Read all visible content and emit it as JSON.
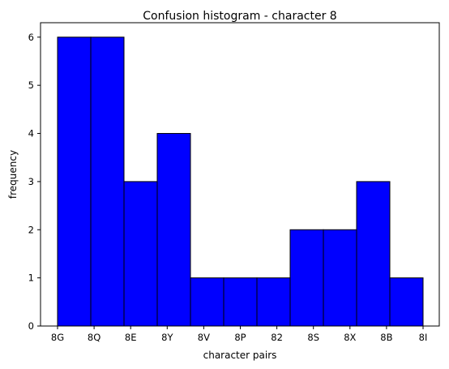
{
  "chart_data": {
    "type": "bar",
    "title": "Confusion histogram - character 8",
    "xlabel": "character pairs",
    "ylabel": "frequency",
    "x_tick_labels": [
      "8G",
      "8Q",
      "8E",
      "8Y",
      "8V",
      "8P",
      "82",
      "8S",
      "8X",
      "8B",
      "8I"
    ],
    "bins": 11,
    "values": [
      6,
      6,
      3,
      4,
      1,
      1,
      1,
      2,
      2,
      3,
      1
    ],
    "ylim": [
      0,
      6.3
    ],
    "y_ticks": [
      0,
      1,
      2,
      3,
      4,
      5,
      6
    ],
    "grid": false,
    "bar_color": "#0000ff",
    "edge_color": "#000000"
  }
}
